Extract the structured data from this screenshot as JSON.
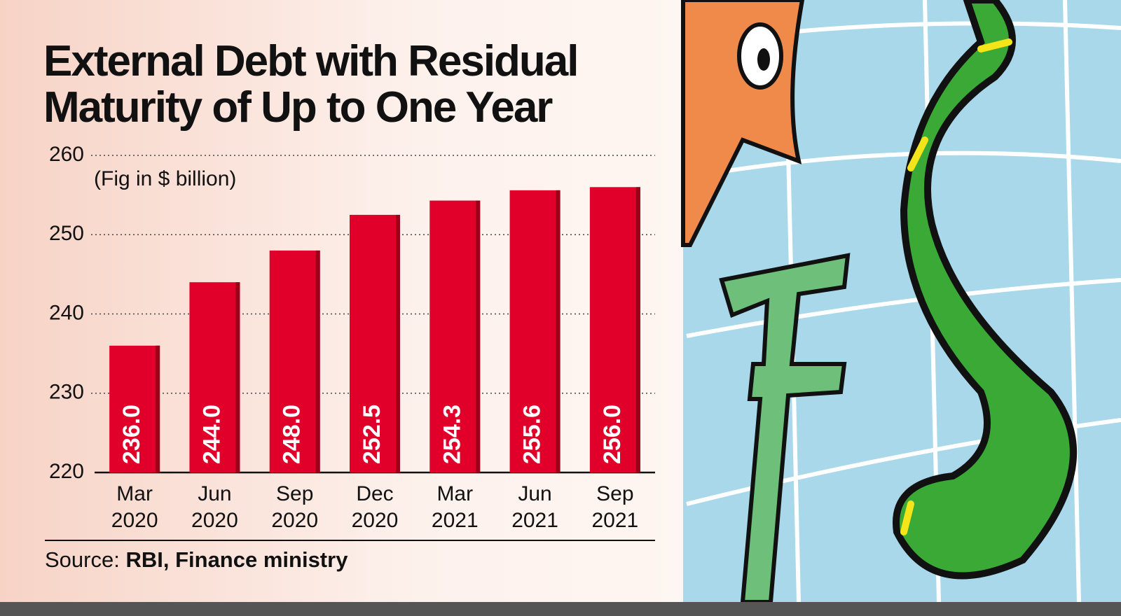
{
  "chart_data": {
    "type": "bar",
    "title": "External Debt with Residual Maturity of Up to One Year",
    "subtitle": "(Fig in $ billion)",
    "categories": [
      "Mar 2020",
      "Jun 2020",
      "Sep 2020",
      "Dec 2020",
      "Mar 2021",
      "Jun 2021",
      "Sep 2021"
    ],
    "values": [
      236,
      244,
      248,
      252.5,
      254.3,
      255.6,
      256
    ],
    "value_labels": [
      "236.0",
      "244.0",
      "248.0",
      "252.5",
      "254.3",
      "255.6",
      "256.0"
    ],
    "color": "#e0002a",
    "ylim": [
      220,
      260
    ],
    "yticks": [
      220,
      230,
      240,
      250,
      260
    ],
    "grid": true,
    "source_label": "Source:",
    "source": "RBI, Finance ministry"
  }
}
